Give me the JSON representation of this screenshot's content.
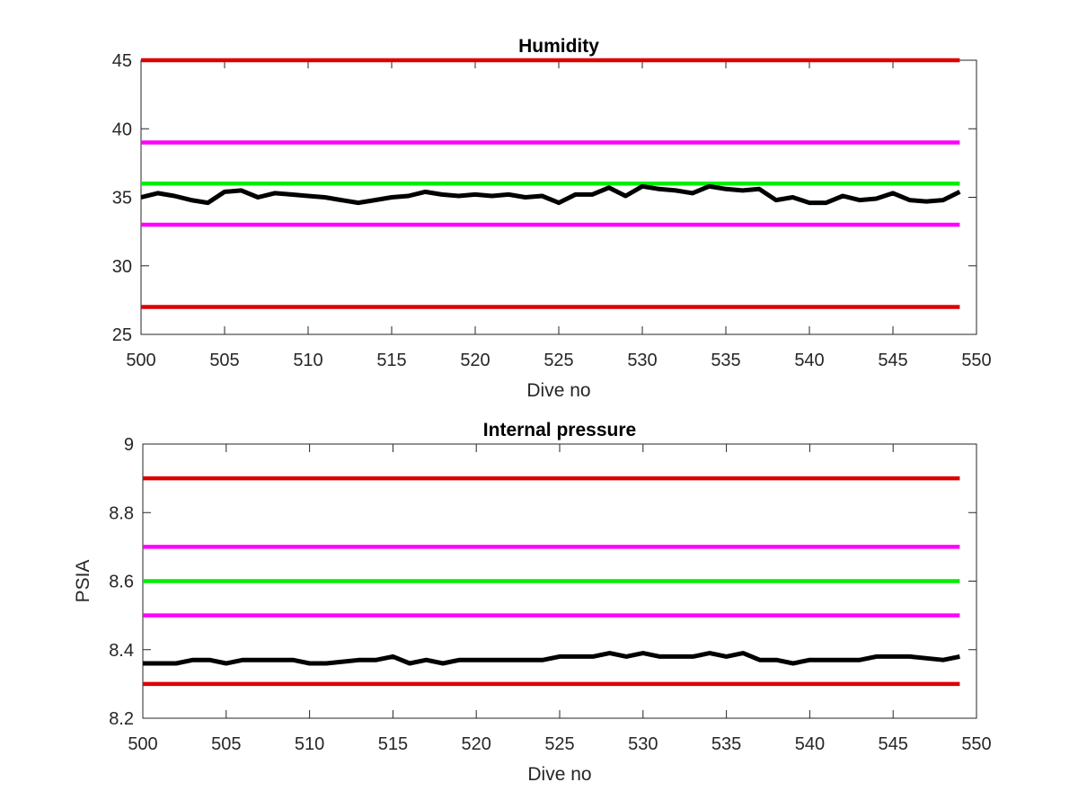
{
  "chart_data": [
    {
      "type": "line",
      "title": "Humidity",
      "xlabel": "Dive no",
      "ylabel": "",
      "xlim": [
        500,
        550
      ],
      "ylim": [
        25,
        45
      ],
      "xticks": [
        500,
        505,
        510,
        515,
        520,
        525,
        530,
        535,
        540,
        545,
        550
      ],
      "yticks": [
        25,
        30,
        35,
        40,
        45
      ],
      "grid": false,
      "series": [
        {
          "color": "#dd0000",
          "x": [
            500,
            549
          ],
          "values": [
            45,
            45
          ]
        },
        {
          "color": "#ff00ff",
          "x": [
            500,
            549
          ],
          "values": [
            39,
            39
          ]
        },
        {
          "color": "#00ee00",
          "x": [
            500,
            549
          ],
          "values": [
            36,
            36
          ]
        },
        {
          "color": "#ff00ff",
          "x": [
            500,
            549
          ],
          "values": [
            33,
            33
          ]
        },
        {
          "color": "#dd0000",
          "x": [
            500,
            549
          ],
          "values": [
            27,
            27
          ]
        },
        {
          "color": "#000000",
          "x": [
            500,
            501,
            502,
            503,
            504,
            505,
            506,
            507,
            508,
            509,
            510,
            511,
            512,
            513,
            514,
            515,
            516,
            517,
            518,
            519,
            520,
            521,
            522,
            523,
            524,
            525,
            526,
            527,
            528,
            529,
            530,
            531,
            532,
            533,
            534,
            535,
            536,
            537,
            538,
            539,
            540,
            541,
            542,
            543,
            544,
            545,
            546,
            547,
            548,
            549
          ],
          "values": [
            35.0,
            35.3,
            35.1,
            34.8,
            34.6,
            35.4,
            35.5,
            35.0,
            35.3,
            35.2,
            35.1,
            35.0,
            34.8,
            34.6,
            34.8,
            35.0,
            35.1,
            35.4,
            35.2,
            35.1,
            35.2,
            35.1,
            35.2,
            35.0,
            35.1,
            34.6,
            35.2,
            35.2,
            35.7,
            35.1,
            35.8,
            35.6,
            35.5,
            35.3,
            35.8,
            35.6,
            35.5,
            35.6,
            34.8,
            35.0,
            34.6,
            34.6,
            35.1,
            34.8,
            34.9,
            35.3,
            34.8,
            34.7,
            34.8,
            35.4
          ]
        }
      ]
    },
    {
      "type": "line",
      "title": "Internal pressure",
      "xlabel": "Dive no",
      "ylabel": "PSIA",
      "xlim": [
        500,
        550
      ],
      "ylim": [
        8.2,
        9
      ],
      "xticks": [
        500,
        505,
        510,
        515,
        520,
        525,
        530,
        535,
        540,
        545,
        550
      ],
      "yticks": [
        "8.2",
        "8.4",
        "8.6",
        "8.8",
        "9"
      ],
      "grid": false,
      "series": [
        {
          "color": "#dd0000",
          "x": [
            500,
            549
          ],
          "values": [
            8.9,
            8.9
          ]
        },
        {
          "color": "#ff00ff",
          "x": [
            500,
            549
          ],
          "values": [
            8.7,
            8.7
          ]
        },
        {
          "color": "#00ee00",
          "x": [
            500,
            549
          ],
          "values": [
            8.6,
            8.6
          ]
        },
        {
          "color": "#ff00ff",
          "x": [
            500,
            549
          ],
          "values": [
            8.5,
            8.5
          ]
        },
        {
          "color": "#dd0000",
          "x": [
            500,
            549
          ],
          "values": [
            8.3,
            8.3
          ]
        },
        {
          "color": "#000000",
          "x": [
            500,
            501,
            502,
            503,
            504,
            505,
            506,
            507,
            508,
            509,
            510,
            511,
            512,
            513,
            514,
            515,
            516,
            517,
            518,
            519,
            520,
            521,
            522,
            523,
            524,
            525,
            526,
            527,
            528,
            529,
            530,
            531,
            532,
            533,
            534,
            535,
            536,
            537,
            538,
            539,
            540,
            541,
            542,
            543,
            544,
            545,
            546,
            547,
            548,
            549
          ],
          "values": [
            8.36,
            8.36,
            8.36,
            8.37,
            8.37,
            8.36,
            8.37,
            8.37,
            8.37,
            8.37,
            8.36,
            8.36,
            8.365,
            8.37,
            8.37,
            8.38,
            8.36,
            8.37,
            8.36,
            8.37,
            8.37,
            8.37,
            8.37,
            8.37,
            8.37,
            8.38,
            8.38,
            8.38,
            8.39,
            8.38,
            8.39,
            8.38,
            8.38,
            8.38,
            8.39,
            8.38,
            8.39,
            8.37,
            8.37,
            8.36,
            8.37,
            8.37,
            8.37,
            8.37,
            8.38,
            8.38,
            8.38,
            8.375,
            8.37,
            8.38
          ]
        }
      ]
    }
  ]
}
